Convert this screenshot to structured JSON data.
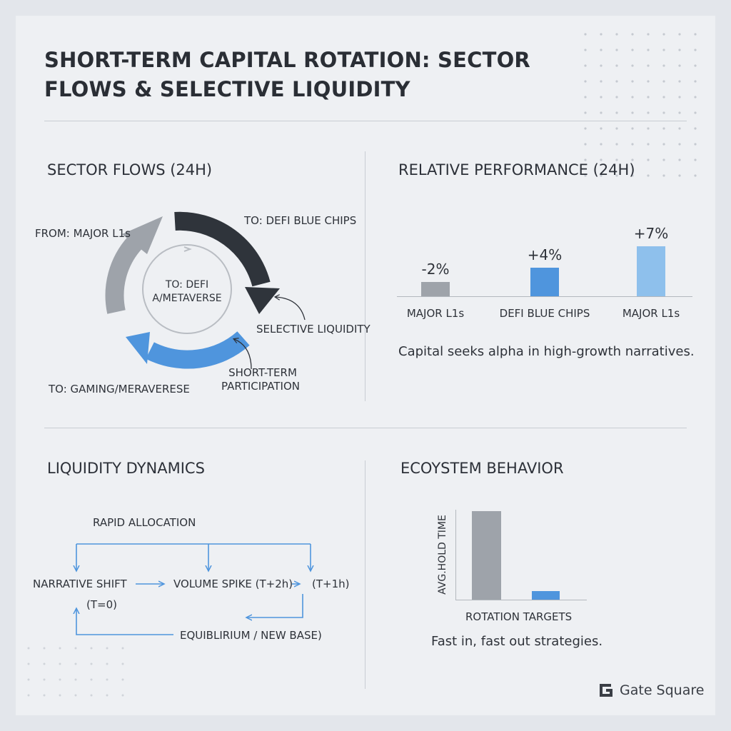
{
  "title": "SHORT-TERM CAPITAL ROTATION: SECTOR FLOWS & SELECTIVE LIQUIDITY",
  "sector_flows": {
    "heading": "SECTOR FLOWS (24H)",
    "from_label": "FROM: MAJOR L1s",
    "to_defi_label": "TO: DEFI BLUE CHIPS",
    "center_line1": "TO: DEFI",
    "center_line2": "A/METAVERSE",
    "selective_label": "SELECTIVE LIQUIDITY",
    "short_term_line1": "SHORT-TERM",
    "short_term_line2": "PARTICIPATION",
    "to_gaming_label": "TO: GAMING/MERAVERESE"
  },
  "relative_performance": {
    "heading": "RELATIVE PERFORMANCE (24H)",
    "caption": "Capital seeks alpha in high-growth narratives."
  },
  "liquidity_dynamics": {
    "heading": "LIQUIDITY DYNAMICS",
    "rapid_allocation": "RAPID ALLOCATION",
    "narrative_shift": "NARRATIVE SHIFT",
    "t0": "(T=0)",
    "volume_spike": "VOLUME SPIKE (T+2h)",
    "t1h": "(T+1h)",
    "equilibrium": "EQUIBLIRIUM / NEW BASE)"
  },
  "ecosystem_behavior": {
    "heading": "ECOYSTEM BEHAVIOR",
    "y_label": "AVG.HOLD TIME",
    "x_label": "ROTATION TARGETS",
    "caption": "Fast in, fast out strategies."
  },
  "brand": {
    "name": "Gate Square"
  },
  "colors": {
    "gray": "#9ea3aa",
    "dark": "#2f343b",
    "blue": "#4f95dd",
    "light_blue": "#8ec0ec",
    "text": "#2e3239"
  },
  "chart_data": [
    {
      "type": "bar",
      "title": "RELATIVE PERFORMANCE (24H)",
      "categories": [
        "MAJOR L1s",
        "DEFI BLUE CHIPS",
        "MAJOR L1s"
      ],
      "values": [
        -2,
        4,
        7
      ],
      "value_labels": [
        "-2%",
        "+4%",
        "+7%"
      ],
      "bar_colors": [
        "#9ea3aa",
        "#4f95dd",
        "#8ec0ec"
      ]
    },
    {
      "type": "bar",
      "title": "ECOYSTEM BEHAVIOR",
      "xlabel": "ROTATION TARGETS",
      "ylabel": "AVG.HOLD TIME",
      "values": [
        1.0,
        0.1
      ],
      "bar_colors": [
        "#9ea3aa",
        "#4f95dd"
      ]
    }
  ]
}
